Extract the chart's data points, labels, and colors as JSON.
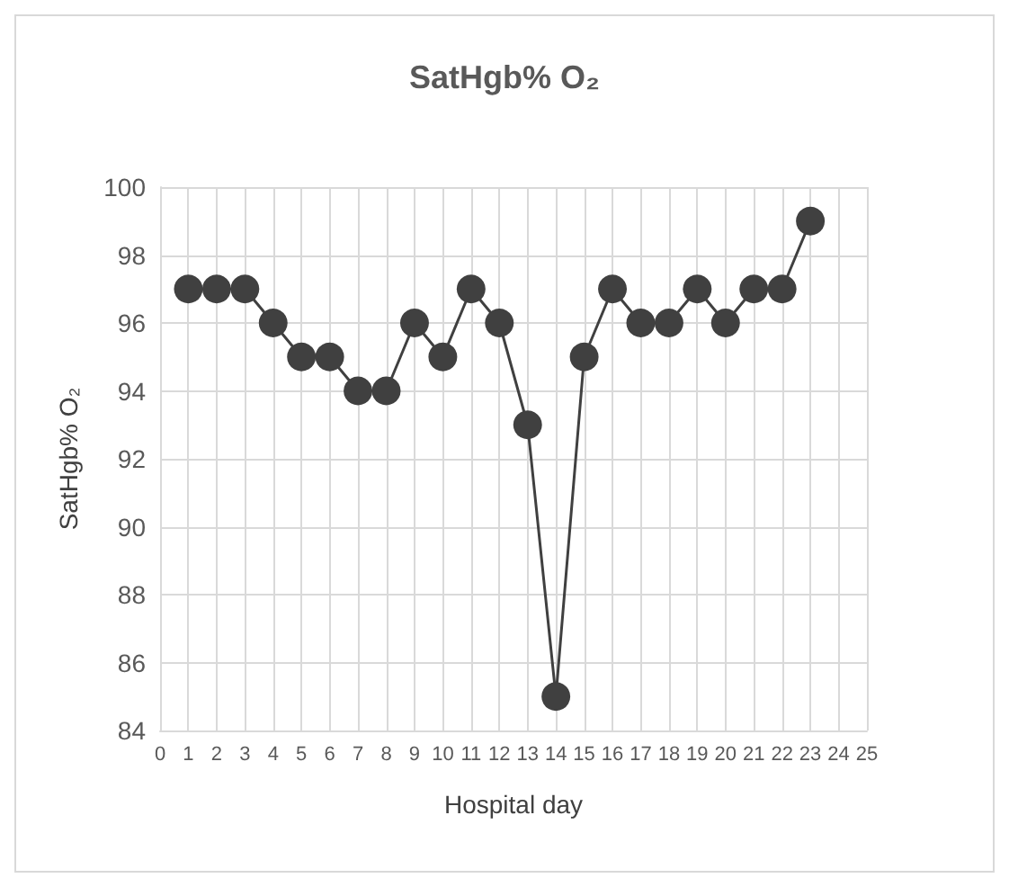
{
  "chart_data": {
    "type": "line",
    "title": "SatHgb% O₂",
    "xlabel": "Hospital day",
    "ylabel": "SatHgb% O₂",
    "x": [
      1,
      2,
      3,
      4,
      5,
      6,
      7,
      8,
      9,
      10,
      11,
      12,
      13,
      14,
      15,
      16,
      17,
      18,
      19,
      20,
      21,
      22,
      23
    ],
    "series": [
      {
        "color": "#404040",
        "values": [
          97,
          97,
          97,
          96,
          95,
          95,
          94,
          94,
          96,
          95,
          97,
          96,
          93,
          85,
          95,
          97,
          96,
          96,
          97,
          96,
          97,
          97,
          99
        ]
      }
    ],
    "xlim": [
      0,
      25
    ],
    "xticks": [
      0,
      1,
      2,
      3,
      4,
      5,
      6,
      7,
      8,
      9,
      10,
      11,
      12,
      13,
      14,
      15,
      16,
      17,
      18,
      19,
      20,
      21,
      22,
      23,
      24,
      25
    ],
    "ylim": [
      84,
      100
    ],
    "yticks": [
      84,
      86,
      88,
      90,
      92,
      94,
      96,
      98,
      100
    ],
    "grid": true,
    "marker": "circle",
    "line_style": "solid"
  }
}
